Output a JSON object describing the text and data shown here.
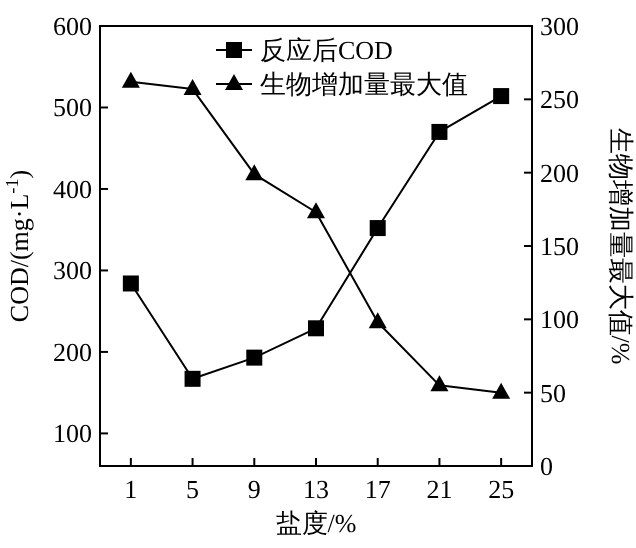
{
  "chart_data": {
    "type": "line",
    "xlabel": "盐度/%",
    "ylabel": "COD/(mg·L$^{-1}$)",
    "y2label": "生物增加量最大值/%",
    "x": [
      1,
      5,
      9,
      13,
      17,
      21,
      25
    ],
    "series": [
      {
        "name": "反应后COD",
        "color": "#000000",
        "marker": "square",
        "values": [
          284,
          167,
          193,
          229,
          352,
          470,
          514
        ]
      },
      {
        "name": "生物增加量最大值",
        "color": "#000000",
        "marker": "triangle",
        "axis": "y2",
        "values": [
          262,
          257,
          199,
          173,
          98,
          55,
          50
        ]
      }
    ],
    "xlim": [
      -1,
      27
    ],
    "xticks": [
      1,
      5,
      9,
      13,
      17,
      21,
      25
    ],
    "ylim": [
      60,
      600
    ],
    "yticks": [
      100,
      200,
      300,
      400,
      500,
      600
    ],
    "y2lim": [
      0,
      300
    ],
    "y2ticks": [
      0,
      50,
      100,
      150,
      200,
      250,
      300
    ],
    "legend": "top",
    "line_style": "solid",
    "grid": false
  }
}
